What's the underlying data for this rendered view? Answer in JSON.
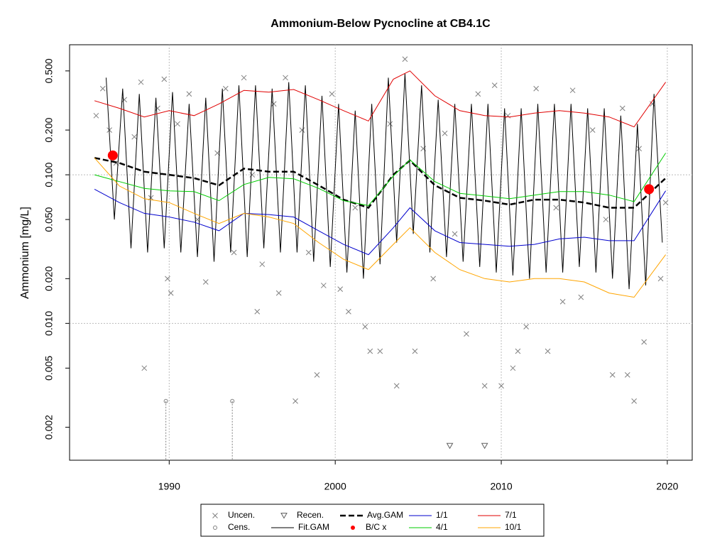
{
  "chart_data": {
    "type": "line",
    "title": "Ammonium-Below Pycnocline at CB4.1C",
    "y_label": "Ammonium [mg/L]",
    "log_y": true,
    "xlim": [
      1984,
      2021.5
    ],
    "ylim": [
      0.0012,
      0.75
    ],
    "xticks": [
      1990,
      2000,
      2010,
      2020
    ],
    "yticks": [
      0.002,
      0.005,
      {
        "value": 0.01,
        "label": "0.010"
      },
      {
        "value": 0.02,
        "label": "0.020"
      },
      {
        "value": 0.05,
        "label": "0.050"
      },
      {
        "value": 0.1,
        "label": "0.100"
      },
      {
        "value": 0.2,
        "label": "0.200"
      },
      {
        "value": 0.5,
        "label": "0.500"
      }
    ],
    "ygrid": [
      0.01,
      0.1
    ],
    "xgrid": true,
    "x": [
      1985.5,
      1987,
      1988.5,
      1990,
      1991.5,
      1993,
      1994.5,
      1996,
      1997.5,
      1999,
      2000.5,
      2002,
      2003.5,
      2004.5,
      2006,
      2007.5,
      2009,
      2010.5,
      2012,
      2013.5,
      2015,
      2016.5,
      2018,
      2019.9
    ],
    "series": [
      {
        "name": "Uncen.",
        "marker": "x",
        "color": "#808080",
        "x": [
          1985.6,
          1986.0,
          1986.4,
          1986.8,
          1987.3,
          1987.9,
          1988.3,
          1988.5,
          1988.9,
          1989.3,
          1989.7,
          1989.9,
          1990.1,
          1990.5,
          1991.2,
          1991.7,
          1992.2,
          1992.9,
          1993.4,
          1993.9,
          1994.5,
          1995.0,
          1995.3,
          1995.6,
          1996.3,
          1996.6,
          1997.0,
          1997.6,
          1998.0,
          1998.4,
          1998.9,
          1999.3,
          1999.8,
          2000.3,
          2000.8,
          2001.2,
          2001.8,
          2002.1,
          2002.7,
          2003.3,
          2003.7,
          2004.2,
          2004.8,
          2005.3,
          2005.9,
          2006.6,
          2007.2,
          2007.9,
          2008.6,
          2009.0,
          2009.6,
          2010.0,
          2010.4,
          2010.7,
          2011.0,
          2011.5,
          2012.1,
          2012.8,
          2013.3,
          2013.7,
          2014.3,
          2014.8,
          2015.5,
          2016.3,
          2016.7,
          2017.3,
          2017.6,
          2018.0,
          2018.3,
          2018.6,
          2019.1,
          2019.6,
          2019.9
        ],
        "values": [
          0.25,
          0.38,
          0.2,
          0.12,
          0.32,
          0.18,
          0.42,
          0.005,
          0.07,
          0.28,
          0.44,
          0.02,
          0.016,
          0.22,
          0.35,
          0.05,
          0.019,
          0.14,
          0.38,
          0.03,
          0.45,
          0.1,
          0.012,
          0.025,
          0.3,
          0.016,
          0.45,
          0.003,
          0.2,
          0.03,
          0.0045,
          0.018,
          0.35,
          0.017,
          0.012,
          0.06,
          0.0095,
          0.0065,
          0.0065,
          0.22,
          0.0038,
          0.6,
          0.0065,
          0.15,
          0.02,
          0.19,
          0.04,
          0.0085,
          0.35,
          0.0038,
          0.4,
          0.0038,
          0.25,
          0.005,
          0.0065,
          0.0095,
          0.38,
          0.0065,
          0.06,
          0.014,
          0.37,
          0.015,
          0.2,
          0.05,
          0.0045,
          0.28,
          0.0045,
          0.003,
          0.15,
          0.0075,
          0.3,
          0.02,
          0.065
        ]
      },
      {
        "name": "Cens.",
        "marker": "o",
        "color": "#808080",
        "x": [
          1989.8,
          1993.8
        ],
        "values": [
          0.003,
          0.003
        ]
      },
      {
        "name": "Recen.",
        "marker": "v",
        "color": "#606060",
        "x": [
          2006.9,
          2009.0
        ],
        "values": [
          0.0015,
          0.0015
        ]
      },
      {
        "name": "Fit.GAM",
        "marker": "line",
        "color": "#000000",
        "width": 1,
        "x": [
          1986.2,
          1986.7,
          1987.2,
          1987.7,
          1988.2,
          1988.7,
          1989.2,
          1989.7,
          1990.2,
          1990.7,
          1991.2,
          1991.7,
          1992.2,
          1992.7,
          1993.2,
          1993.7,
          1994.2,
          1994.7,
          1995.2,
          1995.7,
          1996.2,
          1996.7,
          1997.2,
          1997.7,
          1998.2,
          1998.7,
          1999.2,
          1999.7,
          2000.2,
          2000.7,
          2001.2,
          2001.7,
          2002.2,
          2002.7,
          2003.2,
          2003.7,
          2004.2,
          2004.7,
          2005.2,
          2005.7,
          2006.2,
          2006.7,
          2007.2,
          2007.7,
          2008.2,
          2008.7,
          2009.2,
          2009.7,
          2010.2,
          2010.7,
          2011.2,
          2011.7,
          2012.2,
          2012.7,
          2013.2,
          2013.7,
          2014.2,
          2014.7,
          2015.2,
          2015.7,
          2016.2,
          2016.7,
          2017.2,
          2017.7,
          2018.2,
          2018.7,
          2019.2,
          2019.7
        ],
        "values": [
          0.45,
          0.05,
          0.38,
          0.032,
          0.35,
          0.03,
          0.33,
          0.032,
          0.36,
          0.03,
          0.3,
          0.028,
          0.33,
          0.026,
          0.38,
          0.03,
          0.4,
          0.028,
          0.4,
          0.032,
          0.38,
          0.03,
          0.42,
          0.03,
          0.4,
          0.026,
          0.34,
          0.024,
          0.3,
          0.022,
          0.27,
          0.02,
          0.3,
          0.025,
          0.45,
          0.035,
          0.48,
          0.04,
          0.4,
          0.03,
          0.32,
          0.028,
          0.3,
          0.026,
          0.3,
          0.024,
          0.3,
          0.022,
          0.28,
          0.021,
          0.28,
          0.02,
          0.3,
          0.022,
          0.3,
          0.022,
          0.3,
          0.024,
          0.28,
          0.022,
          0.28,
          0.02,
          0.25,
          0.017,
          0.22,
          0.018,
          0.35,
          0.035
        ]
      },
      {
        "name": "Avg.GAM",
        "marker": "line",
        "color": "#000000",
        "width": 2.5,
        "dash": true,
        "values": [
          0.13,
          0.12,
          0.105,
          0.1,
          0.095,
          0.085,
          0.11,
          0.105,
          0.105,
          0.085,
          0.068,
          0.06,
          0.1,
          0.125,
          0.085,
          0.07,
          0.067,
          0.063,
          0.068,
          0.068,
          0.065,
          0.06,
          0.06,
          0.095
        ]
      },
      {
        "name": "B/C x",
        "marker": "dot",
        "color": "#ff0000",
        "x": [
          1986.6,
          2018.9
        ],
        "values": [
          0.135,
          0.08
        ]
      },
      {
        "name": "1/1",
        "marker": "line",
        "color": "#0000cd",
        "width": 1,
        "values": [
          0.08,
          0.065,
          0.055,
          0.052,
          0.048,
          0.042,
          0.055,
          0.054,
          0.052,
          0.042,
          0.034,
          0.029,
          0.044,
          0.06,
          0.042,
          0.035,
          0.034,
          0.033,
          0.034,
          0.037,
          0.038,
          0.036,
          0.036,
          0.078
        ]
      },
      {
        "name": "4/1",
        "marker": "line",
        "color": "#00cc00",
        "width": 1,
        "values": [
          0.1,
          0.09,
          0.081,
          0.078,
          0.077,
          0.067,
          0.086,
          0.096,
          0.094,
          0.081,
          0.067,
          0.062,
          0.098,
          0.126,
          0.09,
          0.075,
          0.072,
          0.069,
          0.073,
          0.077,
          0.077,
          0.073,
          0.066,
          0.14
        ]
      },
      {
        "name": "7/1",
        "marker": "line",
        "color": "#e00000",
        "width": 1,
        "values": [
          0.315,
          0.28,
          0.245,
          0.27,
          0.25,
          0.3,
          0.37,
          0.36,
          0.375,
          0.32,
          0.27,
          0.23,
          0.44,
          0.5,
          0.34,
          0.27,
          0.25,
          0.245,
          0.26,
          0.27,
          0.26,
          0.245,
          0.21,
          0.42
        ]
      },
      {
        "name": "10/1",
        "marker": "line",
        "color": "#ffa500",
        "width": 1,
        "values": [
          0.13,
          0.084,
          0.069,
          0.065,
          0.055,
          0.047,
          0.055,
          0.052,
          0.047,
          0.035,
          0.027,
          0.023,
          0.034,
          0.044,
          0.03,
          0.023,
          0.02,
          0.019,
          0.02,
          0.02,
          0.019,
          0.016,
          0.015,
          0.029
        ]
      }
    ]
  }
}
